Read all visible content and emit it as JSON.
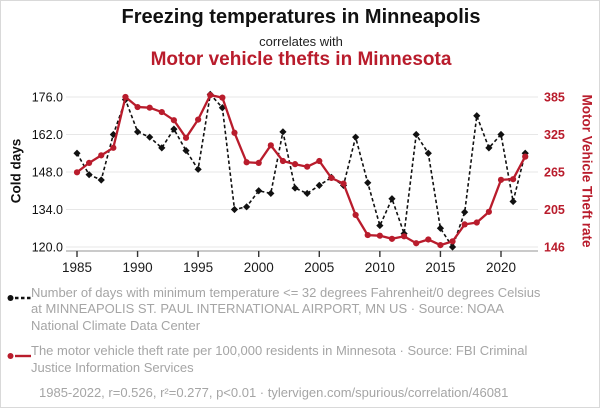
{
  "header": {
    "title": "Freezing temperatures in Minneapolis",
    "connector": "correlates with",
    "red_title": "Motor vehicle thefts in Minnesota"
  },
  "colors": {
    "accent_red": "#b91c2c",
    "series_black": "#111111",
    "grid": "#e7e7e7",
    "axis_line": "#aaaaaa",
    "legend_gray": "#a5a5a5"
  },
  "chart_data": {
    "type": "line",
    "title": "Freezing temperatures in Minneapolis correlates with Motor vehicle thefts in Minnesota",
    "x": [
      1985,
      1986,
      1987,
      1988,
      1989,
      1990,
      1991,
      1992,
      1993,
      1994,
      1995,
      1996,
      1997,
      1998,
      1999,
      2000,
      2001,
      2002,
      2003,
      2004,
      2005,
      2006,
      2007,
      2008,
      2009,
      2010,
      2011,
      2012,
      2013,
      2014,
      2015,
      2016,
      2017,
      2018,
      2019,
      2020,
      2021,
      2022
    ],
    "x_ticks": [
      1985,
      1990,
      1995,
      2000,
      2005,
      2010,
      2015,
      2020
    ],
    "grid": true,
    "legend_position": "bottom",
    "left_axis": {
      "label": "Cold days",
      "tick_labels": [
        "176.0",
        "162.0",
        "148.0",
        "134.0",
        "120.0"
      ],
      "range": [
        120,
        176
      ]
    },
    "right_axis": {
      "label": "Motor Vehicle Theft rate",
      "tick_labels": [
        "385",
        "325",
        "265",
        "205",
        "146"
      ],
      "range": [
        146,
        385
      ]
    },
    "series": [
      {
        "name": "Cold days (days with min temp <= 32F at Minneapolis)",
        "axis": "left",
        "style": "dashed",
        "marker": "diamond",
        "color": "#111111",
        "values": [
          155,
          147,
          145,
          162,
          175,
          163,
          161,
          157,
          164,
          156,
          149,
          177,
          172,
          134,
          135,
          141,
          140,
          163,
          142,
          140,
          143,
          146,
          143,
          161,
          144,
          128,
          138,
          125,
          162,
          155,
          127,
          120,
          133,
          169,
          157,
          162,
          137,
          155
        ]
      },
      {
        "name": "Motor vehicle theft rate per 100,000 residents in Minnesota",
        "axis": "right",
        "style": "solid",
        "marker": "circle",
        "color": "#b91c2c",
        "values": [
          265,
          280,
          292,
          304,
          385,
          369,
          368,
          361,
          348,
          320,
          349,
          388,
          384,
          328,
          281,
          280,
          308,
          283,
          278,
          274,
          283,
          256,
          247,
          197,
          165,
          164,
          159,
          163,
          152,
          158,
          149,
          155,
          182,
          185,
          202,
          253,
          254,
          290
        ]
      }
    ]
  },
  "legend": {
    "entries": [
      {
        "text": "Number of days with minimum temperature <= 32 degrees Fahrenheit/0 degrees Celsius at MINNEAPOLIS ST. PAUL INTERNATIONAL AIRPORT, MN US · Source: NOAA National Climate Data Center"
      },
      {
        "text": "The motor vehicle theft rate per 100,000 residents in Minnesota · Source: FBI Criminal Justice Information Services"
      }
    ]
  },
  "footer": {
    "text": "1985-2022, r=0.526, r²=0.277, p<0.01 · tylervigen.com/spurious/correlation/46081"
  }
}
